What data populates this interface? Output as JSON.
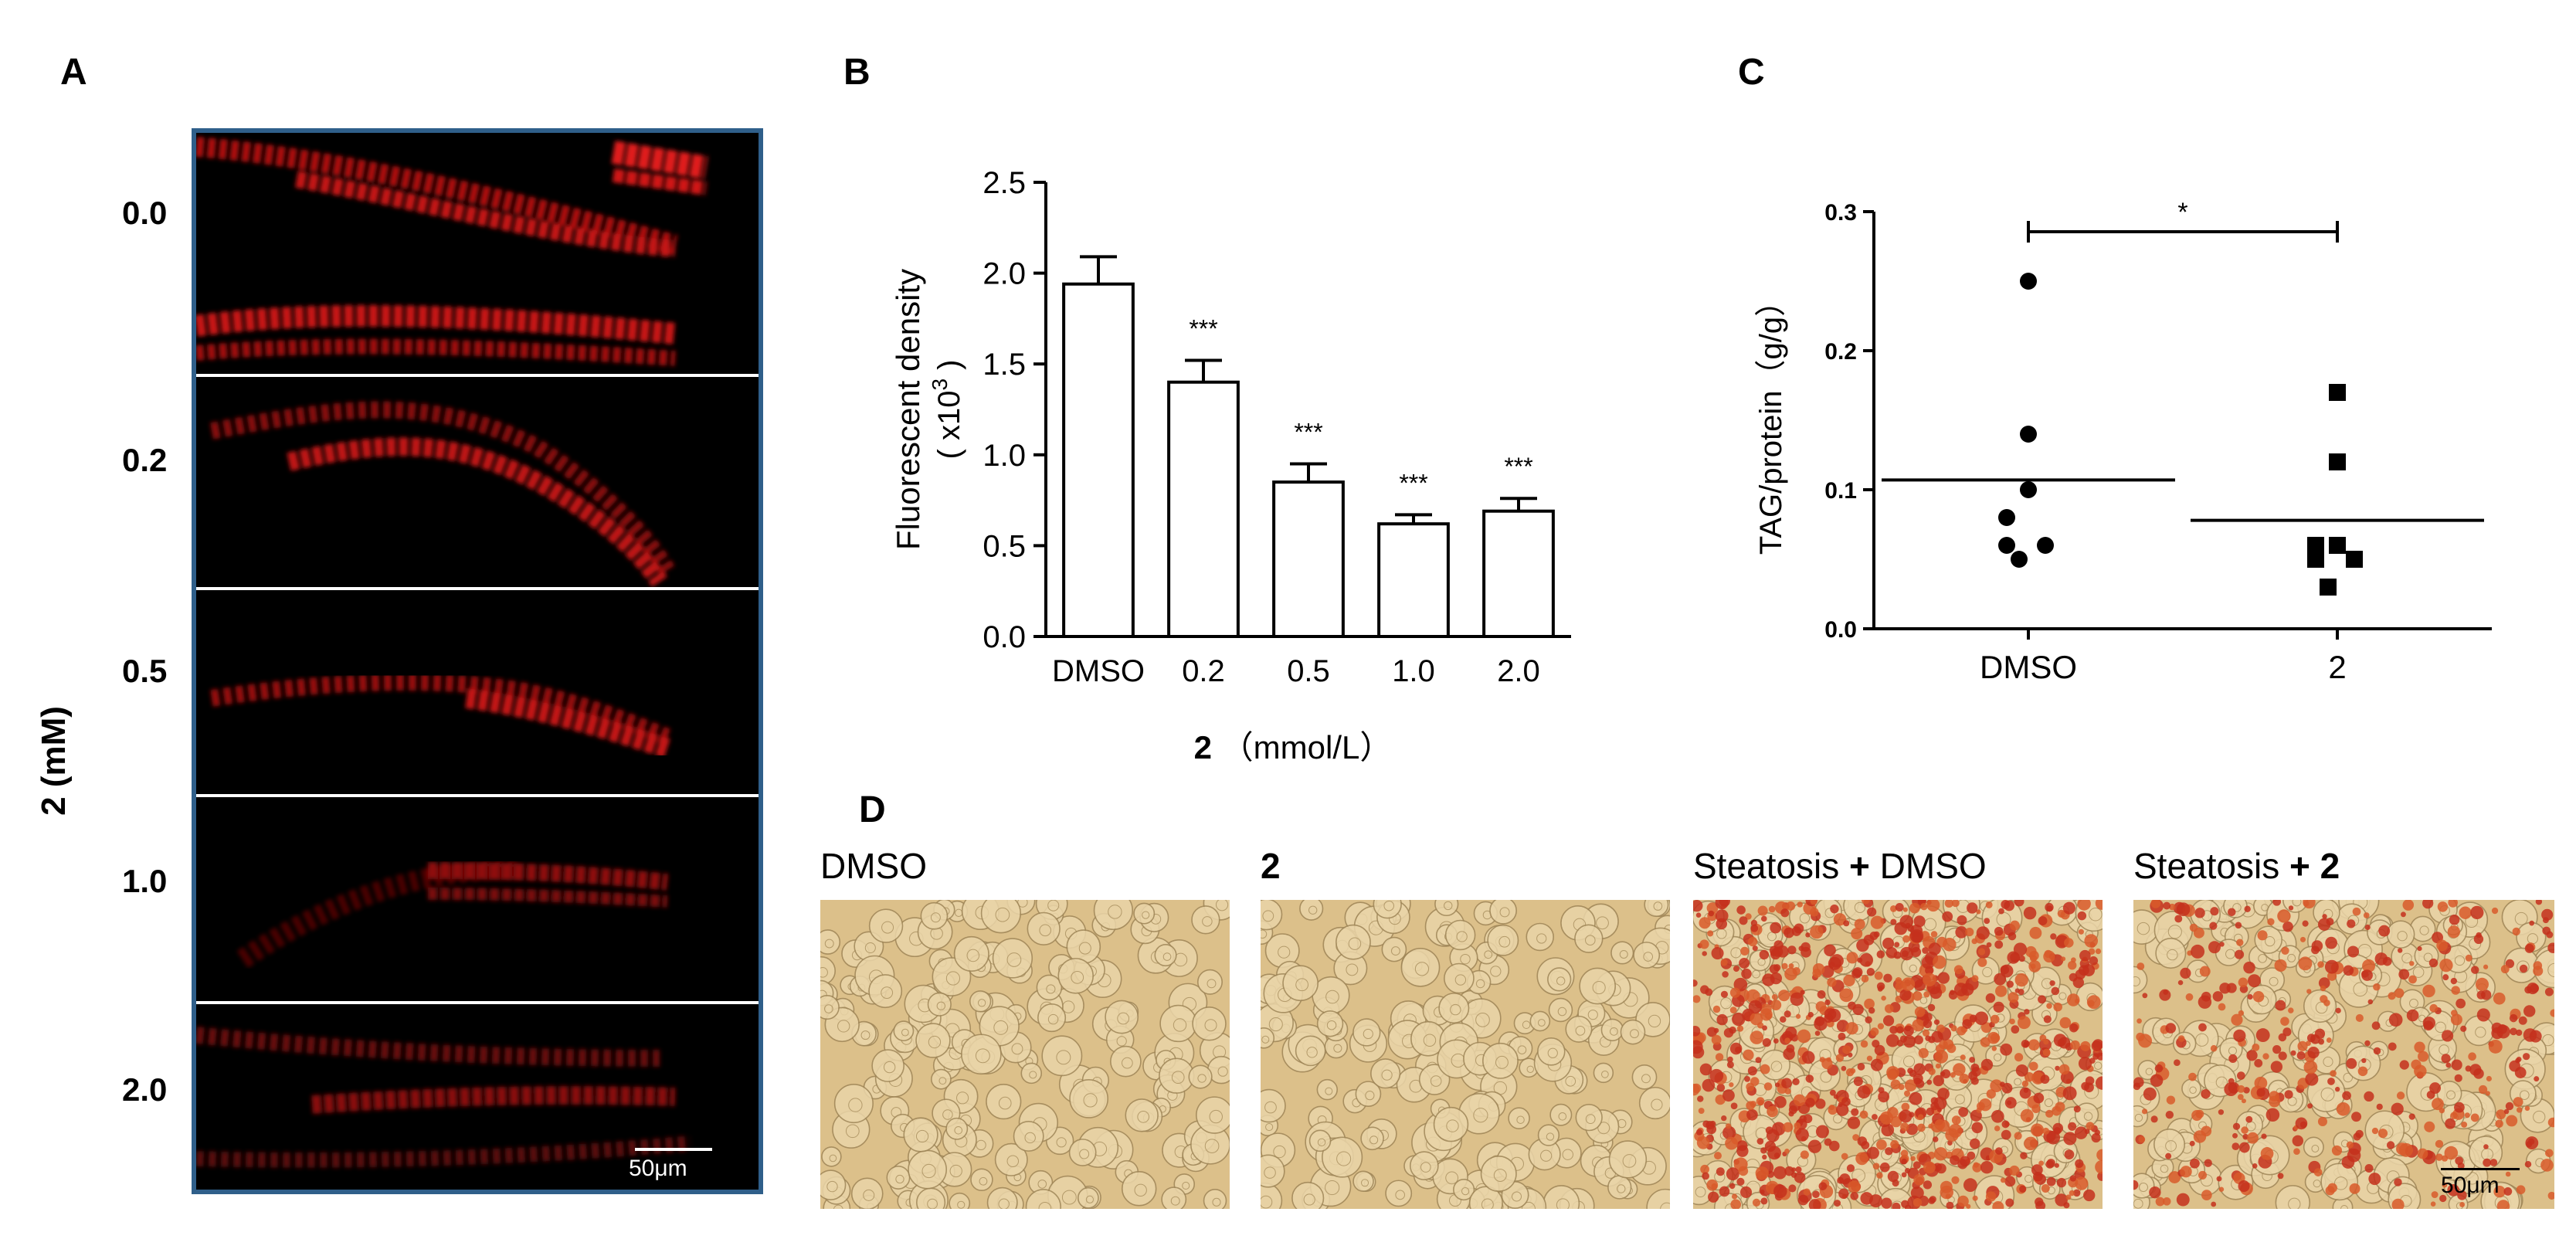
{
  "panels": {
    "a": {
      "letter": "A",
      "y_axis_label": "2 (mM)",
      "doses": [
        "0.0",
        "0.2",
        "0.5",
        "1.0",
        "2.0"
      ],
      "scale_bar": "50μm"
    },
    "b": {
      "letter": "B"
    },
    "c": {
      "letter": "C"
    },
    "d": {
      "letter": "D",
      "images": [
        {
          "title_prefix": "DMSO",
          "title_bold": ""
        },
        {
          "title_prefix": "",
          "title_bold": "2"
        },
        {
          "title_prefix": "Steatosis ",
          "title_bold": "+",
          "title_suffix": " DMSO"
        },
        {
          "title_prefix": "Steatosis ",
          "title_bold": "+ 2",
          "title_suffix": ""
        }
      ],
      "scale_bar": "50μm"
    }
  },
  "chart_data": [
    {
      "type": "bar",
      "panel": "B",
      "categories": [
        "DMSO",
        "0.2",
        "0.5",
        "1.0",
        "2.0"
      ],
      "values": [
        1.94,
        1.4,
        0.85,
        0.62,
        0.69
      ],
      "errors": [
        0.15,
        0.12,
        0.1,
        0.05,
        0.07
      ],
      "significance": [
        "",
        "***",
        "***",
        "***",
        "***"
      ],
      "ylabel_line1": "Fluorescent density",
      "ylabel_line2_prefix": "( x10",
      "ylabel_line2_sup": "3",
      "ylabel_line2_suffix": " )",
      "xlabel_bold": "2",
      "xlabel_rest": " （mmol/L）",
      "ylim": [
        0,
        2.5
      ],
      "yticks": [
        "0.0",
        "0.5",
        "1.0",
        "1.5",
        "2.0",
        "2.5"
      ]
    },
    {
      "type": "scatter",
      "panel": "C",
      "categories": [
        "DMSO",
        "2"
      ],
      "groups": [
        {
          "category": "DMSO",
          "marker": "circle",
          "values": [
            0.25,
            0.14,
            0.1,
            0.08,
            0.06,
            0.06,
            0.05
          ],
          "mean": 0.107
        },
        {
          "category": "2",
          "marker": "square",
          "values": [
            0.17,
            0.12,
            0.06,
            0.06,
            0.05,
            0.05,
            0.03
          ],
          "mean": 0.078
        }
      ],
      "ylabel": "TAG/protein（g/g）",
      "ylim": [
        0,
        0.3
      ],
      "yticks": [
        "0.0",
        "0.1",
        "0.2",
        "0.3"
      ],
      "significance": "*"
    }
  ]
}
